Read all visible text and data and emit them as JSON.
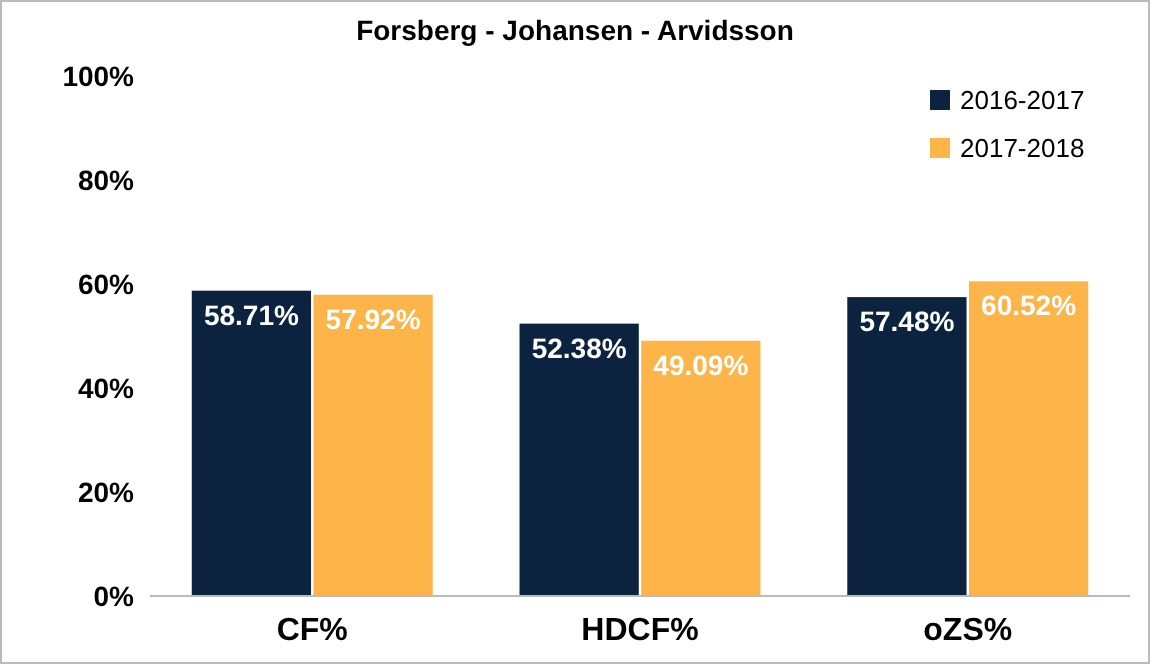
{
  "chart_data": {
    "type": "bar",
    "title": "Forsberg - Johansen - Arvidsson",
    "categories": [
      "CF%",
      "HDCF%",
      "oZS%"
    ],
    "series": [
      {
        "name": "2016-2017",
        "color": "#0c2340",
        "values": [
          58.71,
          52.38,
          57.48
        ],
        "value_labels": [
          "58.71%",
          "52.38%",
          "57.48%"
        ]
      },
      {
        "name": "2017-2018",
        "color": "#fdb449",
        "values": [
          57.92,
          49.09,
          60.52
        ],
        "value_labels": [
          "57.92%",
          "49.09%",
          "60.52%"
        ]
      }
    ],
    "ylim": [
      0,
      100
    ],
    "yticks": [
      {
        "value": 0,
        "label": "0%"
      },
      {
        "value": 20,
        "label": "20%"
      },
      {
        "value": 40,
        "label": "40%"
      },
      {
        "value": 60,
        "label": "60%"
      },
      {
        "value": 80,
        "label": "80%"
      },
      {
        "value": 100,
        "label": "100%"
      }
    ],
    "legend": "top right"
  }
}
